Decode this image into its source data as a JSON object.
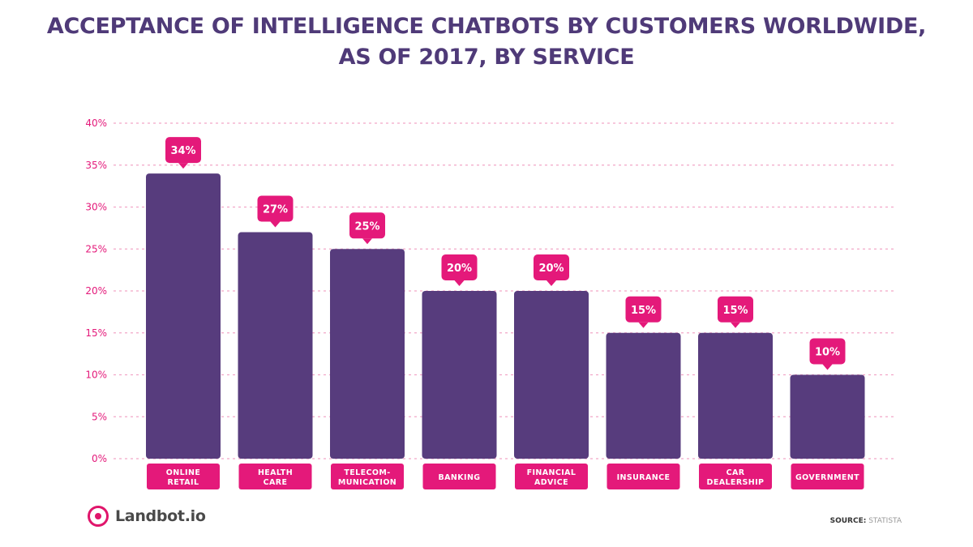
{
  "title_line1": "ACCEPTANCE OF INTELLIGENCE CHATBOTS BY CUSTOMERS WORLDWIDE,",
  "title_line2": "AS OF 2017, BY SERVICE",
  "logo": "Landbot.io",
  "source_label": "SOURCE:",
  "source_value": "STATISTA",
  "colors": {
    "bar": "#573c7d",
    "accent": "#e4197a",
    "grid": "#f2a6c8",
    "axis_text": "#e4197a"
  },
  "chart_data": {
    "type": "bar",
    "title": "ACCEPTANCE OF INTELLIGENCE CHATBOTS BY CUSTOMERS WORLDWIDE, AS OF 2017, BY SERVICE",
    "categories": [
      [
        "ONLINE",
        "RETAIL"
      ],
      [
        "HEALTH",
        "CARE"
      ],
      [
        "TELECOM-",
        "MUNICATION"
      ],
      [
        "BANKING"
      ],
      [
        "FINANCIAL",
        "ADVICE"
      ],
      [
        "INSURANCE"
      ],
      [
        "CAR",
        "DEALERSHIP"
      ],
      [
        "GOVERNMENT"
      ]
    ],
    "values": [
      34,
      27,
      25,
      20,
      20,
      15,
      15,
      10
    ],
    "value_labels": [
      "34%",
      "27%",
      "25%",
      "20%",
      "20%",
      "15%",
      "15%",
      "10%"
    ],
    "yticks": [
      "0%",
      "5%",
      "10%",
      "15%",
      "20%",
      "25%",
      "30%",
      "35%",
      "40%"
    ],
    "ylim": [
      0,
      40
    ],
    "grid": true
  }
}
